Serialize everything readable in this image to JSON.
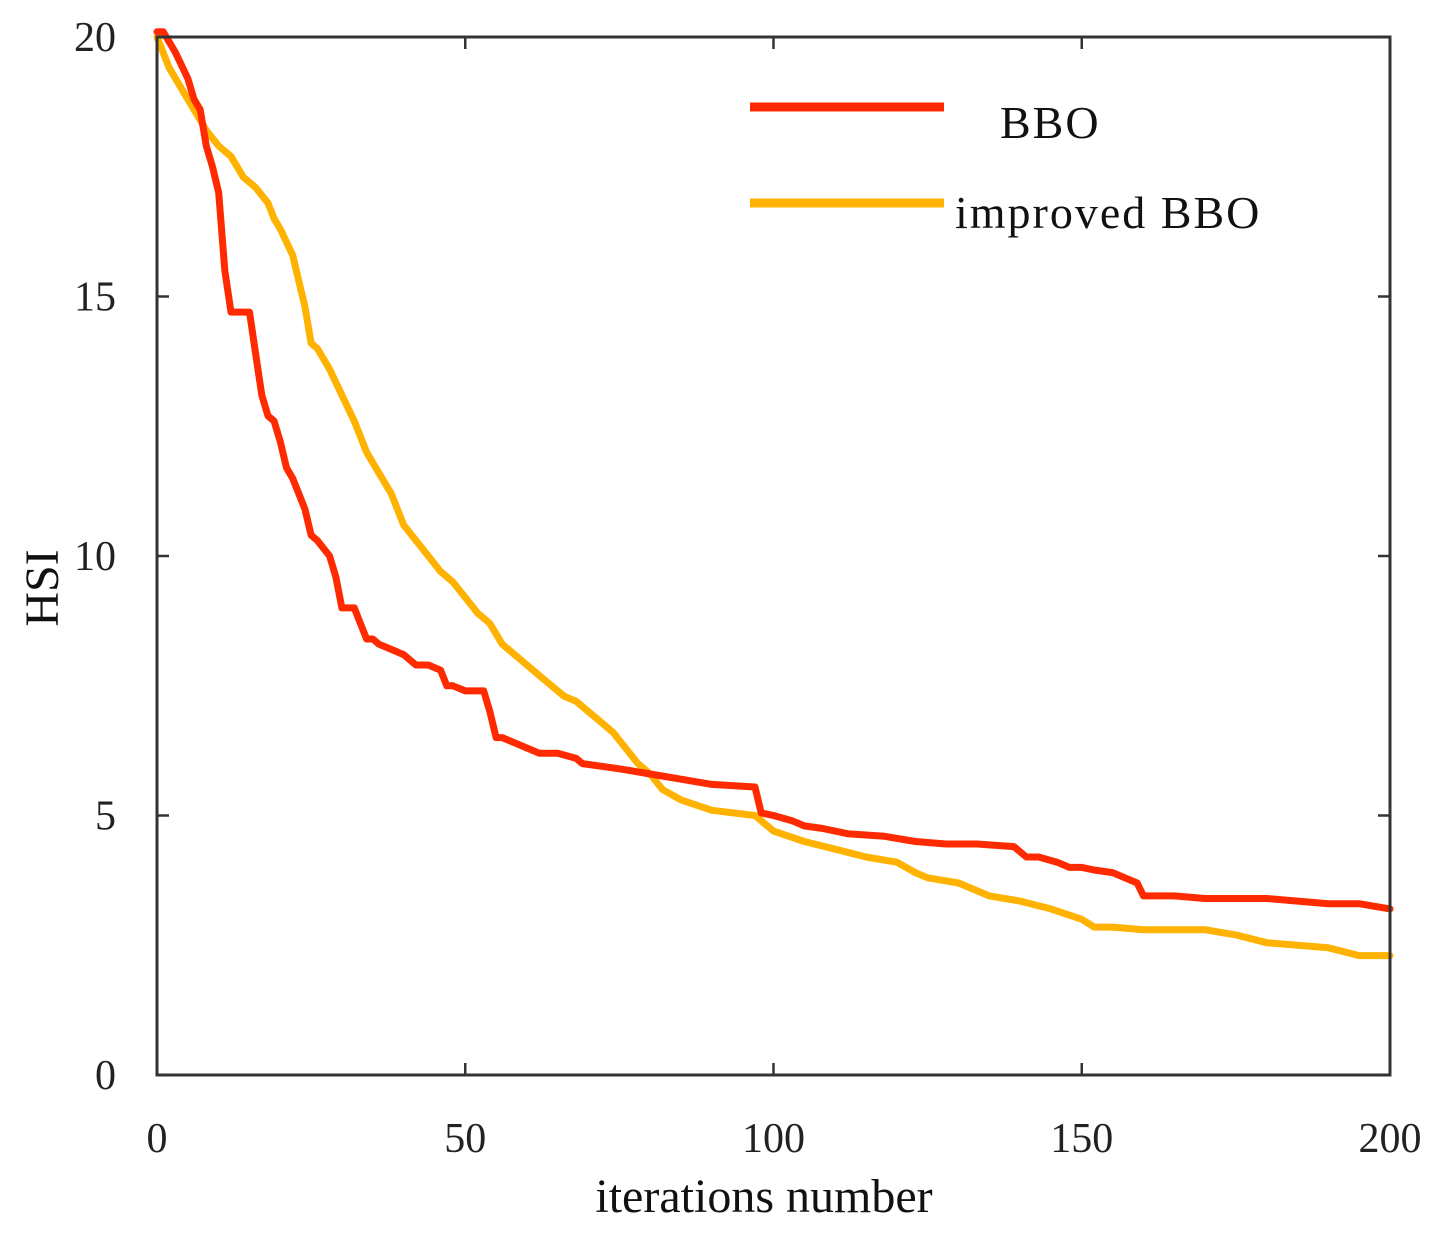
{
  "chart_data": {
    "type": "line",
    "title": "",
    "xlabel": "iterations number",
    "ylabel": "HSI",
    "xlim": [
      0,
      200
    ],
    "ylim": [
      0,
      20
    ],
    "xticks": [
      0,
      50,
      100,
      150,
      200
    ],
    "xtick_labels": [
      "0",
      "50",
      "100",
      "150",
      "200"
    ],
    "yticks": [
      0,
      5,
      10,
      15,
      20
    ],
    "ytick_labels": [
      "0",
      "5",
      "10",
      "15",
      "20"
    ],
    "grid": false,
    "legend_position": "top-right",
    "series": [
      {
        "name": "BBO",
        "color": "#ff2a00",
        "x": [
          0,
          1,
          3,
          5,
          6,
          7,
          8,
          9,
          10,
          11,
          12,
          13,
          15,
          16,
          17,
          18,
          19,
          20,
          21,
          22,
          24,
          25,
          26,
          28,
          29,
          30,
          32,
          33,
          34,
          35,
          36,
          38,
          40,
          42,
          44,
          46,
          47,
          48,
          50,
          53,
          54,
          55,
          56,
          58,
          60,
          62,
          65,
          68,
          69,
          72,
          75,
          80,
          85,
          90,
          97,
          98,
          100,
          103,
          105,
          108,
          112,
          118,
          123,
          128,
          133,
          139,
          141,
          143,
          146,
          148,
          150,
          152,
          155,
          157,
          159,
          160,
          161,
          165,
          170,
          175,
          180,
          185,
          190,
          195,
          200
        ],
        "y": [
          20.1,
          20.1,
          19.7,
          19.2,
          18.8,
          18.6,
          17.9,
          17.5,
          17.0,
          15.5,
          14.7,
          14.7,
          14.7,
          13.9,
          13.1,
          12.7,
          12.6,
          12.2,
          11.7,
          11.5,
          10.9,
          10.4,
          10.3,
          10.0,
          9.6,
          9.0,
          9.0,
          8.7,
          8.4,
          8.4,
          8.3,
          8.2,
          8.1,
          7.9,
          7.9,
          7.8,
          7.5,
          7.5,
          7.4,
          7.4,
          7.0,
          6.5,
          6.5,
          6.4,
          6.3,
          6.2,
          6.2,
          6.1,
          6.0,
          5.95,
          5.9,
          5.8,
          5.7,
          5.6,
          5.55,
          5.05,
          5.0,
          4.9,
          4.8,
          4.75,
          4.65,
          4.6,
          4.5,
          4.45,
          4.45,
          4.4,
          4.2,
          4.2,
          4.1,
          4.0,
          4.0,
          3.95,
          3.9,
          3.8,
          3.7,
          3.45,
          3.45,
          3.45,
          3.4,
          3.4,
          3.4,
          3.35,
          3.3,
          3.3,
          3.2
        ]
      },
      {
        "name": "improved BBO",
        "color": "#ffb300",
        "x": [
          0,
          2,
          4,
          6,
          8,
          10,
          12,
          14,
          16,
          18,
          19,
          20,
          22,
          23,
          24,
          25,
          26,
          28,
          30,
          32,
          34,
          36,
          38,
          40,
          42,
          44,
          46,
          48,
          50,
          52,
          54,
          56,
          58,
          60,
          62,
          64,
          66,
          68,
          70,
          72,
          74,
          76,
          78,
          80,
          82,
          85,
          90,
          97,
          100,
          105,
          110,
          115,
          120,
          123,
          125,
          130,
          135,
          140,
          145,
          150,
          152,
          155,
          160,
          170,
          175,
          180,
          190,
          195,
          200
        ],
        "y": [
          20.0,
          19.4,
          19.0,
          18.6,
          18.2,
          17.9,
          17.7,
          17.3,
          17.1,
          16.8,
          16.5,
          16.3,
          15.8,
          15.3,
          14.8,
          14.1,
          14.0,
          13.6,
          13.1,
          12.6,
          12.0,
          11.6,
          11.2,
          10.6,
          10.3,
          10.0,
          9.7,
          9.5,
          9.2,
          8.9,
          8.7,
          8.3,
          8.1,
          7.9,
          7.7,
          7.5,
          7.3,
          7.2,
          7.0,
          6.8,
          6.6,
          6.3,
          6.0,
          5.8,
          5.5,
          5.3,
          5.1,
          5.0,
          4.7,
          4.5,
          4.35,
          4.2,
          4.1,
          3.9,
          3.8,
          3.7,
          3.45,
          3.35,
          3.2,
          3.0,
          2.85,
          2.85,
          2.8,
          2.8,
          2.7,
          2.55,
          2.45,
          2.3,
          2.3
        ]
      }
    ]
  }
}
